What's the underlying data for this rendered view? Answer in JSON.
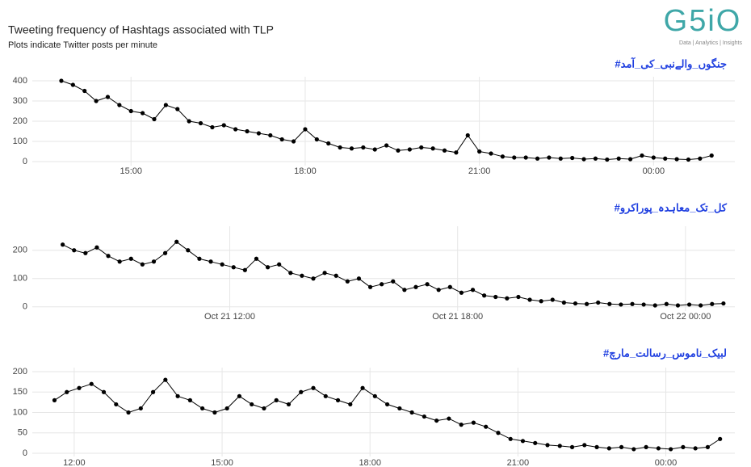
{
  "header": {
    "title": "Tweeting frequency of Hashtags associated with TLP",
    "subtitle": "Plots indicate Twitter posts per minute",
    "logo": "G5iO",
    "tagline": "Data | Analytics | Insights"
  },
  "chart_data": [
    {
      "type": "line",
      "title": "#جنگوں_والےنبی_کی_آمد",
      "color": "#000000",
      "grid": true,
      "x": [
        13.8,
        14.0,
        14.2,
        14.4,
        14.6,
        14.8,
        15.0,
        15.2,
        15.4,
        15.6,
        15.8,
        16.0,
        16.2,
        16.4,
        16.6,
        16.8,
        17.0,
        17.2,
        17.4,
        17.6,
        17.8,
        18.0,
        18.2,
        18.4,
        18.6,
        18.8,
        19.0,
        19.2,
        19.4,
        19.6,
        19.8,
        20.0,
        20.2,
        20.4,
        20.6,
        20.8,
        21.0,
        21.2,
        21.4,
        21.6,
        21.8,
        22.0,
        22.2,
        22.4,
        22.6,
        22.8,
        23.0,
        23.2,
        23.4,
        23.6,
        23.8,
        24.0,
        24.2,
        24.4,
        24.6,
        24.8,
        25.0
      ],
      "values": [
        400,
        380,
        350,
        300,
        320,
        280,
        250,
        240,
        210,
        280,
        260,
        200,
        190,
        170,
        180,
        160,
        150,
        140,
        130,
        110,
        100,
        160,
        110,
        90,
        70,
        65,
        70,
        60,
        80,
        55,
        60,
        70,
        65,
        55,
        45,
        130,
        50,
        40,
        25,
        20,
        20,
        15,
        20,
        15,
        18,
        12,
        15,
        10,
        15,
        12,
        30,
        20,
        15,
        12,
        10,
        15,
        30
      ],
      "xlim": [
        13.3,
        25.4
      ],
      "xticks": [
        {
          "value": 15,
          "label": "15:00"
        },
        {
          "value": 18,
          "label": "18:00"
        },
        {
          "value": 21,
          "label": "21:00"
        },
        {
          "value": 24,
          "label": "00:00"
        }
      ],
      "ylim": [
        -20,
        420
      ],
      "yticks": [
        0,
        100,
        200,
        300,
        400
      ]
    },
    {
      "type": "line",
      "title": "#کل_تک_معاہدہ_پوراکرو",
      "color": "#000000",
      "grid": true,
      "x": [
        7.6,
        7.9,
        8.2,
        8.5,
        8.8,
        9.1,
        9.4,
        9.7,
        10.0,
        10.3,
        10.6,
        10.9,
        11.2,
        11.5,
        11.8,
        12.1,
        12.4,
        12.7,
        13.0,
        13.3,
        13.6,
        13.9,
        14.2,
        14.5,
        14.8,
        15.1,
        15.4,
        15.7,
        16.0,
        16.3,
        16.6,
        16.9,
        17.2,
        17.5,
        17.8,
        18.1,
        18.4,
        18.7,
        19.0,
        19.3,
        19.6,
        19.9,
        20.2,
        20.5,
        20.8,
        21.1,
        21.4,
        21.7,
        22.0,
        22.3,
        22.6,
        22.9,
        23.2,
        23.5,
        23.8,
        24.1,
        24.4,
        24.7,
        25.0
      ],
      "values": [
        220,
        200,
        190,
        210,
        180,
        160,
        170,
        150,
        160,
        190,
        230,
        200,
        170,
        160,
        150,
        140,
        130,
        170,
        140,
        150,
        120,
        110,
        100,
        120,
        110,
        90,
        100,
        70,
        80,
        90,
        60,
        70,
        80,
        60,
        70,
        50,
        60,
        40,
        35,
        30,
        35,
        25,
        20,
        25,
        15,
        12,
        10,
        15,
        10,
        8,
        10,
        8,
        5,
        10,
        5,
        8,
        5,
        10,
        12
      ],
      "xlim": [
        6.8,
        25.3
      ],
      "xticks": [
        {
          "value": 12,
          "label": "Oct 21 12:00"
        },
        {
          "value": 18,
          "label": "Oct 21 18:00"
        },
        {
          "value": 24,
          "label": "Oct 22 00:00"
        }
      ],
      "ylim": [
        -15,
        285
      ],
      "yticks": [
        0,
        100,
        200
      ]
    },
    {
      "type": "line",
      "title": "#لبیک_ناموس_رسالت_مارچ",
      "color": "#000000",
      "grid": true,
      "x": [
        11.6,
        11.85,
        12.1,
        12.35,
        12.6,
        12.85,
        13.1,
        13.35,
        13.6,
        13.85,
        14.1,
        14.35,
        14.6,
        14.85,
        15.1,
        15.35,
        15.6,
        15.85,
        16.1,
        16.35,
        16.6,
        16.85,
        17.1,
        17.35,
        17.6,
        17.85,
        18.1,
        18.35,
        18.6,
        18.85,
        19.1,
        19.35,
        19.6,
        19.85,
        20.1,
        20.35,
        20.6,
        20.85,
        21.1,
        21.35,
        21.6,
        21.85,
        22.1,
        22.35,
        22.6,
        22.85,
        23.1,
        23.35,
        23.6,
        23.85,
        24.1,
        24.35,
        24.6,
        24.85,
        25.1
      ],
      "values": [
        130,
        150,
        160,
        170,
        150,
        120,
        100,
        110,
        150,
        180,
        140,
        130,
        110,
        100,
        110,
        140,
        120,
        110,
        130,
        120,
        150,
        160,
        140,
        130,
        120,
        160,
        140,
        120,
        110,
        100,
        90,
        80,
        85,
        70,
        75,
        65,
        50,
        35,
        30,
        25,
        20,
        18,
        15,
        20,
        15,
        12,
        15,
        10,
        15,
        12,
        10,
        15,
        12,
        15,
        35
      ],
      "xlim": [
        11.15,
        25.4
      ],
      "xticks": [
        {
          "value": 12,
          "label": "12:00"
        },
        {
          "value": 15,
          "label": "15:00"
        },
        {
          "value": 18,
          "label": "18:00"
        },
        {
          "value": 21,
          "label": "21:00"
        },
        {
          "value": 24,
          "label": "00:00"
        }
      ],
      "ylim": [
        -8,
        210
      ],
      "yticks": [
        0,
        50,
        100,
        150,
        200
      ]
    }
  ]
}
